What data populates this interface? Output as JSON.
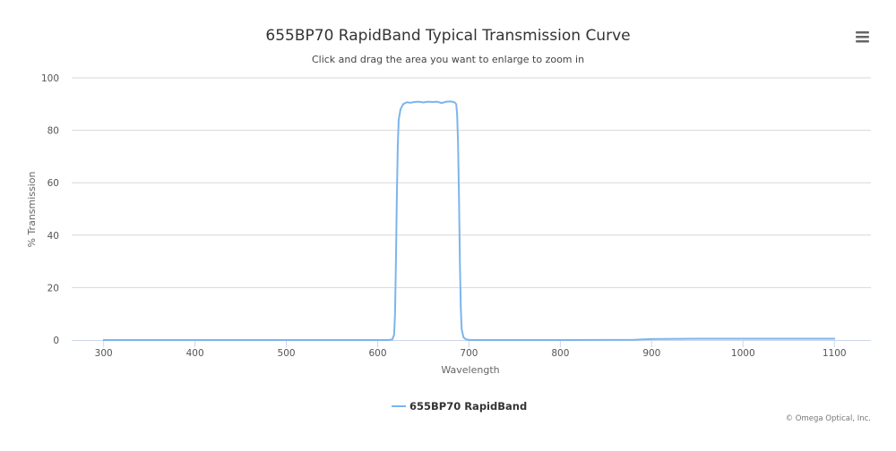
{
  "title": "655BP70 RapidBand Typical Transmission Curve",
  "subtitle": "Click and drag the area you want to enlarge to zoom in",
  "credits": "© Omega Optical, Inc.",
  "menu_icon": "hamburger-menu-icon",
  "colors": {
    "series": "#7cb5ec",
    "grid": "#d8d8d8",
    "axis": "#ccd6eb"
  },
  "chart_data": {
    "type": "line",
    "title": "655BP70 RapidBand Typical Transmission Curve",
    "subtitle": "Click and drag the area you want to enlarge to zoom in",
    "xlabel": "Wavelength",
    "ylabel": "% Transmission",
    "xlim": [
      265,
      1140
    ],
    "ylim": [
      0,
      100
    ],
    "x_ticks": [
      300,
      400,
      500,
      600,
      700,
      800,
      900,
      1000,
      1100
    ],
    "y_ticks": [
      0,
      20,
      40,
      60,
      80,
      100
    ],
    "x_tick_labels": [
      "300",
      "400",
      "500",
      "600",
      "700",
      "800",
      "900",
      "1000",
      "1100"
    ],
    "y_tick_labels": [
      "0",
      "20",
      "40",
      "60",
      "80",
      "100"
    ],
    "grid": true,
    "legend_position": "bottom-center",
    "series": [
      {
        "name": "655BP70 RapidBand",
        "color": "#7cb5ec",
        "points": [
          [
            300,
            0
          ],
          [
            400,
            0
          ],
          [
            500,
            0
          ],
          [
            600,
            0
          ],
          [
            612,
            0
          ],
          [
            616,
            0.2
          ],
          [
            618,
            2
          ],
          [
            619,
            10
          ],
          [
            620,
            30
          ],
          [
            621,
            55
          ],
          [
            622,
            74
          ],
          [
            623,
            84
          ],
          [
            625,
            88
          ],
          [
            628,
            90
          ],
          [
            632,
            90.7
          ],
          [
            636,
            90.5
          ],
          [
            640,
            90.8
          ],
          [
            645,
            90.9
          ],
          [
            650,
            90.6
          ],
          [
            655,
            90.9
          ],
          [
            660,
            90.8
          ],
          [
            665,
            90.9
          ],
          [
            670,
            90.4
          ],
          [
            675,
            90.9
          ],
          [
            680,
            91
          ],
          [
            684,
            90.7
          ],
          [
            686,
            90
          ],
          [
            687,
            86
          ],
          [
            688,
            75
          ],
          [
            689,
            55
          ],
          [
            690,
            30
          ],
          [
            691,
            12
          ],
          [
            692,
            4
          ],
          [
            694,
            1
          ],
          [
            697,
            0.2
          ],
          [
            702,
            0
          ],
          [
            800,
            0
          ],
          [
            880,
            0.1
          ],
          [
            900,
            0.4
          ],
          [
            950,
            0.5
          ],
          [
            1000,
            0.5
          ],
          [
            1050,
            0.5
          ],
          [
            1100,
            0.5
          ]
        ]
      }
    ]
  }
}
